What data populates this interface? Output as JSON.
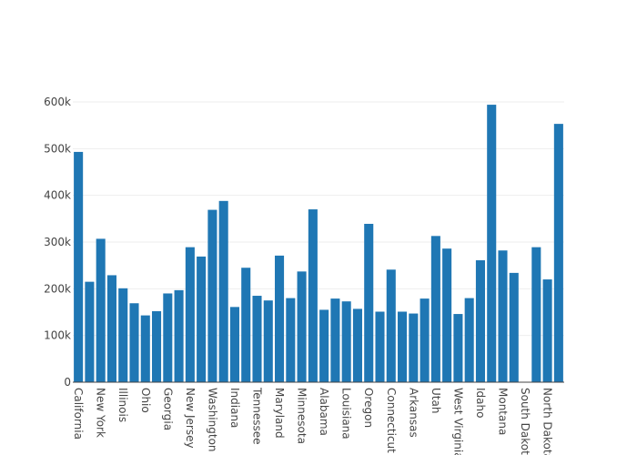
{
  "chart_data": {
    "type": "bar",
    "categories": [
      "California",
      "",
      "New York",
      "",
      "Illinois",
      "",
      "Ohio",
      "",
      "Georgia",
      "",
      "New Jersey",
      "",
      "Washington",
      "",
      "Indiana",
      "",
      "Tennessee",
      "",
      "Maryland",
      "",
      "Minnesota",
      "",
      "Alabama",
      "",
      "Louisiana",
      "",
      "Oregon",
      "",
      "Connecticut",
      "",
      "Arkansas",
      "",
      "Utah",
      "",
      "West Virginia",
      "",
      "Idaho",
      "",
      "Montana",
      "",
      "South Dakota",
      "",
      "North Dakota",
      ""
    ],
    "values": [
      493000,
      215000,
      307000,
      229000,
      201000,
      169000,
      143000,
      152000,
      190000,
      197000,
      289000,
      269000,
      369000,
      388000,
      161000,
      245000,
      185000,
      175000,
      271000,
      180000,
      237000,
      370000,
      155000,
      179000,
      173000,
      157000,
      339000,
      151000,
      241000,
      151000,
      147000,
      179000,
      313000,
      286000,
      146000,
      180000,
      261000,
      594000,
      282000,
      234000,
      0,
      289000,
      220000,
      553000
    ],
    "color": "#1f77b4",
    "y_ticks": [
      "0",
      "100k",
      "200k",
      "300k",
      "400k",
      "500k",
      "600k"
    ],
    "ylim": [
      0,
      600000
    ],
    "grid": true,
    "title": "",
    "xlabel": "",
    "ylabel": ""
  }
}
